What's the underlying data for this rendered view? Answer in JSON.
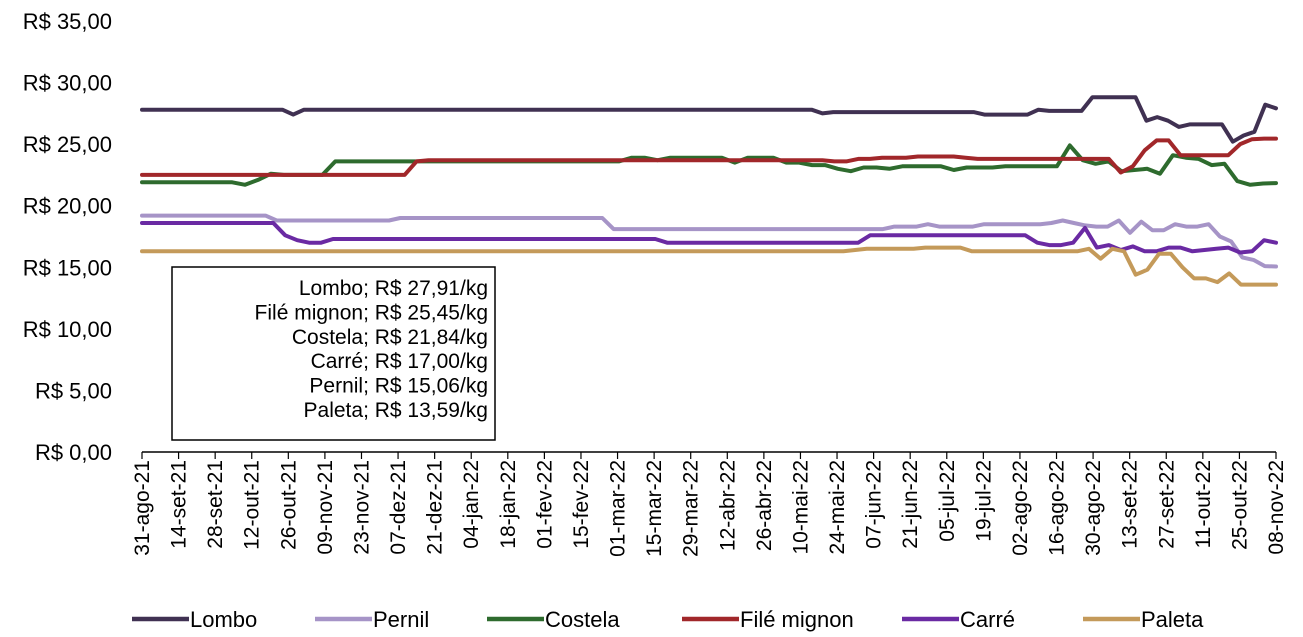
{
  "chart_data": {
    "type": "line",
    "title": "",
    "xlabel": "",
    "ylabel": "",
    "ylim": [
      0,
      35
    ],
    "y_ticks": [
      "R$ 0,00",
      "R$ 5,00",
      "R$ 10,00",
      "R$ 15,00",
      "R$ 20,00",
      "R$ 25,00",
      "R$ 30,00",
      "R$ 35,00"
    ],
    "x_tick_labels": [
      "31-ago-21",
      "14-set-21",
      "28-set-21",
      "12-out-21",
      "26-out-21",
      "09-nov-21",
      "23-nov-21",
      "07-dez-21",
      "21-dez-21",
      "04-jan-22",
      "18-jan-22",
      "01-fev-22",
      "15-fev-22",
      "01-mar-22",
      "15-mar-22",
      "29-mar-22",
      "12-abr-22",
      "26-abr-22",
      "10-mai-22",
      "24-mai-22",
      "07-jun-22",
      "21-jun-22",
      "05-jul-22",
      "19-jul-22",
      "02-ago-22",
      "16-ago-22",
      "30-ago-22",
      "13-set-22",
      "27-set-22",
      "11-out-22",
      "25-out-22",
      "08-nov-22"
    ],
    "grid": false,
    "legend_position": "bottom",
    "series": [
      {
        "name": "Lombo",
        "color": "#403152",
        "values": [
          27.8,
          27.8,
          27.8,
          27.8,
          27.8,
          27.8,
          27.8,
          27.8,
          27.8,
          27.8,
          27.8,
          27.8,
          27.8,
          27.8,
          27.4,
          27.8,
          27.8,
          27.8,
          27.8,
          27.8,
          27.8,
          27.8,
          27.8,
          27.8,
          27.8,
          27.8,
          27.8,
          27.8,
          27.8,
          27.8,
          27.8,
          27.8,
          27.8,
          27.8,
          27.8,
          27.8,
          27.8,
          27.8,
          27.8,
          27.8,
          27.8,
          27.8,
          27.8,
          27.8,
          27.8,
          27.8,
          27.8,
          27.8,
          27.8,
          27.8,
          27.8,
          27.8,
          27.8,
          27.8,
          27.8,
          27.8,
          27.8,
          27.8,
          27.8,
          27.8,
          27.8,
          27.8,
          27.8,
          27.5,
          27.6,
          27.6,
          27.6,
          27.6,
          27.6,
          27.6,
          27.6,
          27.6,
          27.6,
          27.6,
          27.6,
          27.6,
          27.6,
          27.6,
          27.4,
          27.4,
          27.4,
          27.4,
          27.4,
          27.8,
          27.7,
          27.7,
          27.7,
          27.7,
          28.8,
          28.8,
          28.8,
          28.8,
          28.8,
          26.9,
          27.2,
          26.9,
          26.4,
          26.6,
          26.6,
          26.6,
          26.6,
          25.2,
          25.7,
          26,
          28.2,
          27.91
        ]
      },
      {
        "name": "Pernil",
        "color": "#A694C7",
        "values": [
          19.2,
          19.2,
          19.2,
          19.2,
          19.2,
          19.2,
          19.2,
          19.2,
          19.2,
          19.2,
          19.2,
          19.2,
          18.8,
          18.8,
          18.8,
          18.8,
          18.8,
          18.8,
          18.8,
          18.8,
          18.8,
          18.8,
          18.8,
          19,
          19,
          19,
          19,
          19,
          19,
          19,
          19,
          19,
          19,
          19,
          19,
          19,
          19,
          19,
          19,
          19,
          19,
          19,
          18.1,
          18.1,
          18.1,
          18.1,
          18.1,
          18.1,
          18.1,
          18.1,
          18.1,
          18.1,
          18.1,
          18.1,
          18.1,
          18.1,
          18.1,
          18.1,
          18.1,
          18.1,
          18.1,
          18.1,
          18.1,
          18.1,
          18.1,
          18.1,
          18.1,
          18.3,
          18.3,
          18.3,
          18.5,
          18.3,
          18.3,
          18.3,
          18.3,
          18.5,
          18.5,
          18.5,
          18.5,
          18.5,
          18.5,
          18.6,
          18.8,
          18.6,
          18.4,
          18.3,
          18.3,
          18.8,
          17.8,
          18.7,
          18,
          18,
          18.5,
          18.3,
          18.3,
          18.5,
          17.5,
          17.1,
          15.8,
          15.6,
          15.1,
          15.06
        ]
      },
      {
        "name": "Costela",
        "color": "#2E6B2E",
        "values": [
          21.9,
          21.9,
          21.9,
          21.9,
          21.9,
          21.9,
          21.9,
          21.9,
          21.7,
          22.1,
          22.6,
          22.5,
          22.5,
          22.5,
          22.5,
          23.6,
          23.6,
          23.6,
          23.6,
          23.6,
          23.6,
          23.6,
          23.6,
          23.6,
          23.6,
          23.6,
          23.6,
          23.6,
          23.6,
          23.6,
          23.6,
          23.6,
          23.6,
          23.6,
          23.6,
          23.6,
          23.6,
          23.6,
          23.9,
          23.9,
          23.7,
          23.9,
          23.9,
          23.9,
          23.9,
          23.9,
          23.5,
          23.9,
          23.9,
          23.9,
          23.5,
          23.5,
          23.3,
          23.3,
          23,
          22.8,
          23.1,
          23.1,
          23,
          23.2,
          23.2,
          23.2,
          23.2,
          22.9,
          23.1,
          23.1,
          23.1,
          23.2,
          23.2,
          23.2,
          23.2,
          23.2,
          24.9,
          23.7,
          23.4,
          23.6,
          22.8,
          22.9,
          23,
          22.6,
          24.1,
          23.9,
          23.8,
          23.3,
          23.4,
          22,
          21.7,
          21.8,
          21.84
        ]
      },
      {
        "name": "Filé mignon",
        "color": "#A1272A",
        "values": [
          22.5,
          22.5,
          22.5,
          22.5,
          22.5,
          22.5,
          22.5,
          22.5,
          22.5,
          22.5,
          22.5,
          22.5,
          22.5,
          22.5,
          22.5,
          22.5,
          22.5,
          22.5,
          22.5,
          22.5,
          22.5,
          22.5,
          22.5,
          23.6,
          23.7,
          23.7,
          23.7,
          23.7,
          23.7,
          23.7,
          23.7,
          23.7,
          23.7,
          23.7,
          23.7,
          23.7,
          23.7,
          23.7,
          23.7,
          23.7,
          23.7,
          23.7,
          23.7,
          23.7,
          23.7,
          23.7,
          23.7,
          23.7,
          23.7,
          23.7,
          23.7,
          23.7,
          23.7,
          23.7,
          23.7,
          23.7,
          23.7,
          23.7,
          23.6,
          23.6,
          23.8,
          23.8,
          23.9,
          23.9,
          23.9,
          24,
          24,
          24,
          24,
          23.9,
          23.8,
          23.8,
          23.8,
          23.8,
          23.8,
          23.8,
          23.8,
          23.8,
          23.8,
          23.8,
          23.8,
          23.8,
          22.7,
          23.2,
          24.5,
          25.3,
          25.3,
          24.1,
          24.1,
          24.1,
          24.1,
          24.1,
          25,
          25.4,
          25.45,
          25.45
        ]
      },
      {
        "name": "Carré",
        "color": "#6A2AA3",
        "values": [
          18.6,
          18.6,
          18.6,
          18.6,
          18.6,
          18.6,
          18.6,
          18.6,
          18.6,
          18.6,
          18.6,
          18.6,
          17.6,
          17.2,
          17,
          17,
          17.3,
          17.3,
          17.3,
          17.3,
          17.3,
          17.3,
          17.3,
          17.3,
          17.3,
          17.3,
          17.3,
          17.3,
          17.3,
          17.3,
          17.3,
          17.3,
          17.3,
          17.3,
          17.3,
          17.3,
          17.3,
          17.3,
          17.3,
          17.3,
          17.3,
          17.3,
          17.3,
          17.3,
          17,
          17,
          17,
          17,
          17,
          17,
          17,
          17,
          17,
          17,
          17,
          17,
          17,
          17,
          17,
          17,
          17,
          17.6,
          17.6,
          17.6,
          17.6,
          17.6,
          17.6,
          17.6,
          17.6,
          17.6,
          17.6,
          17.6,
          17.6,
          17.6,
          17.6,
          17,
          16.8,
          16.8,
          17,
          18.2,
          16.6,
          16.8,
          16.4,
          16.7,
          16.3,
          16.3,
          16.6,
          16.6,
          16.3,
          16.4,
          16.5,
          16.6,
          16.2,
          16.3,
          17.2,
          17
        ]
      },
      {
        "name": "Paleta",
        "color": "#C49A5A",
        "values": [
          16.3,
          16.3,
          16.3,
          16.3,
          16.3,
          16.3,
          16.3,
          16.3,
          16.3,
          16.3,
          16.3,
          16.3,
          16.3,
          16.3,
          16.3,
          16.3,
          16.3,
          16.3,
          16.3,
          16.3,
          16.3,
          16.3,
          16.3,
          16.3,
          16.3,
          16.3,
          16.3,
          16.3,
          16.3,
          16.3,
          16.3,
          16.3,
          16.3,
          16.3,
          16.3,
          16.3,
          16.3,
          16.3,
          16.3,
          16.3,
          16.3,
          16.3,
          16.3,
          16.3,
          16.3,
          16.3,
          16.3,
          16.3,
          16.3,
          16.3,
          16.3,
          16.3,
          16.3,
          16.3,
          16.3,
          16.3,
          16.3,
          16.3,
          16.3,
          16.3,
          16.3,
          16.4,
          16.5,
          16.5,
          16.5,
          16.5,
          16.5,
          16.6,
          16.6,
          16.6,
          16.6,
          16.3,
          16.3,
          16.3,
          16.3,
          16.3,
          16.3,
          16.3,
          16.3,
          16.3,
          16.3,
          16.5,
          15.7,
          16.5,
          16.3,
          14.4,
          14.8,
          16.1,
          16.1,
          15,
          14.1,
          14.1,
          13.8,
          14.5,
          13.59,
          13.59,
          13.59,
          13.59
        ]
      }
    ],
    "annotation_lines": [
      "Lombo; R$ 27,91/kg",
      "Filé mignon; R$ 25,45/kg",
      "Costela; R$ 21,84/kg",
      "Carré; R$ 17,00/kg",
      "Pernil; R$ 15,06/kg",
      "Paleta; R$ 13,59/kg"
    ]
  }
}
